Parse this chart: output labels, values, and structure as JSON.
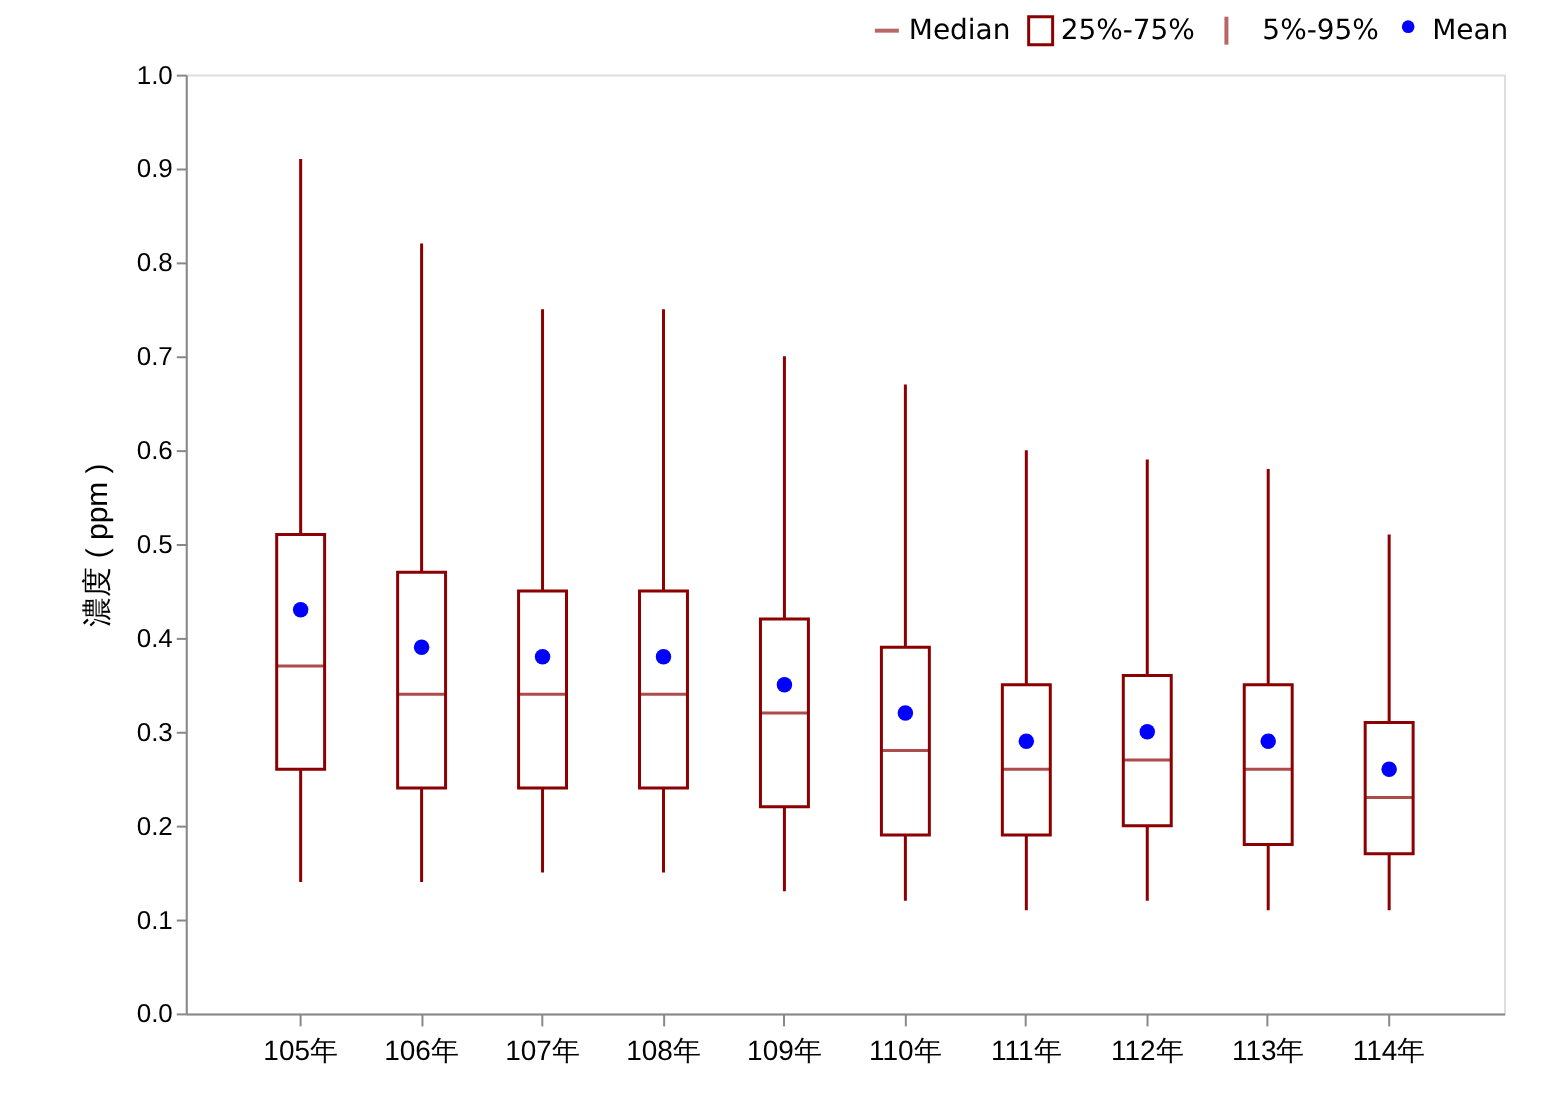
{
  "chart_data": {
    "type": "box",
    "ylabel": "濃度 ( ppm )",
    "categories": [
      "105年",
      "106年",
      "107年",
      "108年",
      "109年",
      "110年",
      "111年",
      "112年",
      "113年",
      "114年"
    ],
    "ylim": [
      0,
      1
    ],
    "yticks": [
      {
        "value": 0,
        "label": "0.0"
      },
      0.1,
      0.2,
      0.3,
      0.4,
      0.5,
      0.6,
      0.7,
      0.8,
      0.9,
      {
        "value": 1,
        "label": "1.0"
      }
    ],
    "grid": false,
    "legend": "top right",
    "annotations": [
      "Median",
      "5%-95%"
    ],
    "series": [
      {
        "name": "25%-75%",
        "color": "#8b0000",
        "boxes": [
          {
            "low": 0.14,
            "q1": 0.26,
            "median": 0.37,
            "q3": 0.51,
            "high": 0.91
          },
          {
            "low": 0.14,
            "q1": 0.24,
            "median": 0.34,
            "q3": 0.47,
            "high": 0.82
          },
          {
            "low": 0.15,
            "q1": 0.24,
            "median": 0.34,
            "q3": 0.45,
            "high": 0.75
          },
          {
            "low": 0.15,
            "q1": 0.24,
            "median": 0.34,
            "q3": 0.45,
            "high": 0.75
          },
          {
            "low": 0.13,
            "q1": 0.22,
            "median": 0.32,
            "q3": 0.42,
            "high": 0.7
          },
          {
            "low": 0.12,
            "q1": 0.19,
            "median": 0.28,
            "q3": 0.39,
            "high": 0.67
          },
          {
            "low": 0.11,
            "q1": 0.19,
            "median": 0.26,
            "q3": 0.35,
            "high": 0.6
          },
          {
            "low": 0.12,
            "q1": 0.2,
            "median": 0.27,
            "q3": 0.36,
            "high": 0.59
          },
          {
            "low": 0.11,
            "q1": 0.18,
            "median": 0.26,
            "q3": 0.35,
            "high": 0.58
          },
          {
            "low": 0.11,
            "q1": 0.17,
            "median": 0.23,
            "q3": 0.31,
            "high": 0.51
          }
        ]
      },
      {
        "name": "Mean",
        "type": "scatter",
        "color": "#0000ff",
        "marker": "circle",
        "x": [
          "105年",
          "106年",
          "107年",
          "108年",
          "109年",
          "110年",
          "111年",
          "112年",
          "113年",
          "114年"
        ],
        "values": [
          0.43,
          0.39,
          0.38,
          0.38,
          0.35,
          0.32,
          0.29,
          0.3,
          0.29,
          0.26
        ]
      }
    ]
  }
}
